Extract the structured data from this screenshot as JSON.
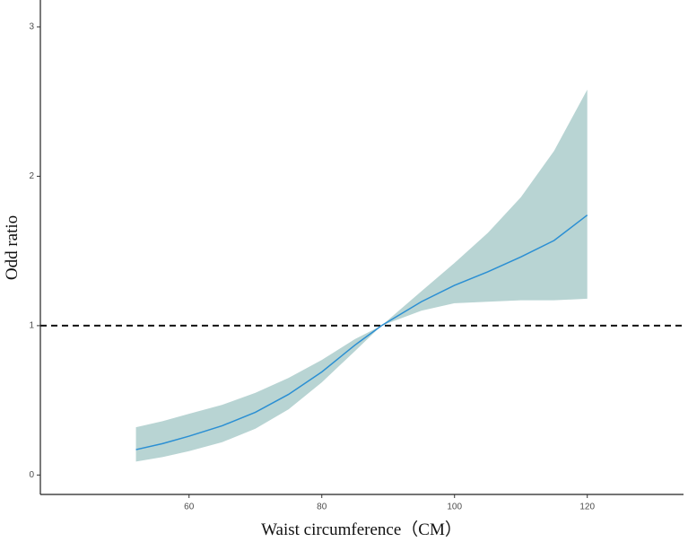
{
  "chart_data": {
    "type": "line",
    "x_label": "Waist circumference（CM）",
    "y_label": "Odd ratio",
    "x": [
      52,
      56,
      60,
      65,
      70,
      75,
      80,
      85,
      89,
      95,
      100,
      105,
      110,
      115,
      120
    ],
    "y": [
      0.17,
      0.21,
      0.26,
      0.33,
      0.42,
      0.54,
      0.69,
      0.87,
      1.0,
      1.16,
      1.27,
      1.36,
      1.46,
      1.57,
      1.74
    ],
    "lower": [
      0.09,
      0.12,
      0.16,
      0.22,
      0.31,
      0.44,
      0.62,
      0.83,
      1.0,
      1.1,
      1.15,
      1.16,
      1.17,
      1.17,
      1.18
    ],
    "upper": [
      0.32,
      0.36,
      0.41,
      0.47,
      0.55,
      0.65,
      0.77,
      0.91,
      1.0,
      1.23,
      1.42,
      1.62,
      1.86,
      2.17,
      2.58
    ],
    "line_color": "#2b8fd3",
    "band_color": "#b8d4d3",
    "reference_line": 1,
    "xlim": [
      37.6,
      134.5
    ],
    "xticks": [
      60,
      80,
      100,
      120
    ],
    "ylim": [
      -0.13,
      3.18
    ],
    "yticks": [
      0,
      1,
      2,
      3
    ]
  }
}
